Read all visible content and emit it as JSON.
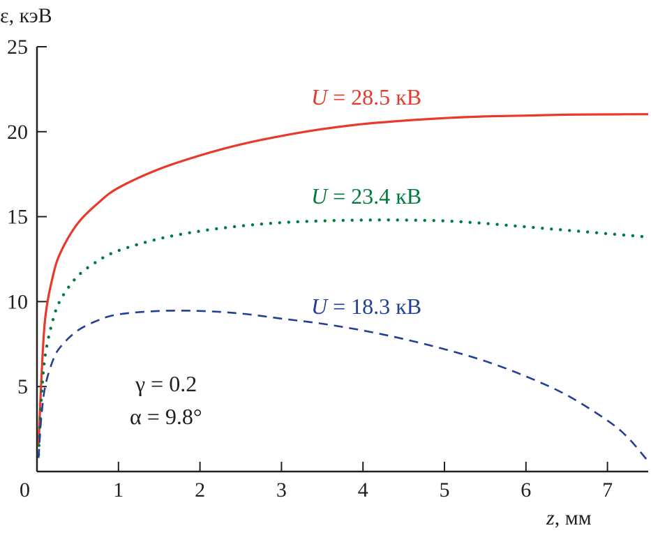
{
  "chart_data": {
    "type": "line",
    "title": "",
    "xlabel": {
      "var": "z",
      "unit": ", мм"
    },
    "ylabel": "ε, кэВ",
    "xlim": [
      0,
      7.5
    ],
    "ylim": [
      0,
      25
    ],
    "x_ticks": [
      0,
      1,
      2,
      3,
      4,
      5,
      6,
      7
    ],
    "y_ticks": [
      5,
      10,
      15,
      20,
      25
    ],
    "x_tick_labels": [
      "0",
      "1",
      "2",
      "3",
      "4",
      "5",
      "6",
      "7"
    ],
    "y_tick_labels": [
      "5",
      "10",
      "15",
      "20",
      "25"
    ],
    "grid": false,
    "annotations": [
      "γ = 0.2",
      "α = 9.8°"
    ],
    "series": [
      {
        "name": "U = 28.5 кВ",
        "label_var": "U",
        "label_rest": " = 28.5 кВ",
        "color": "#e8392a",
        "style": "solid",
        "x": [
          0.02,
          0.05,
          0.1,
          0.2,
          0.3,
          0.5,
          0.75,
          1.0,
          1.5,
          2.0,
          2.5,
          3.0,
          3.5,
          4.0,
          4.5,
          5.0,
          5.5,
          6.0,
          6.5,
          7.0,
          7.5
        ],
        "y": [
          1.5,
          5.0,
          9.0,
          11.6,
          13.0,
          14.6,
          15.8,
          16.7,
          17.8,
          18.6,
          19.25,
          19.75,
          20.15,
          20.45,
          20.65,
          20.8,
          20.9,
          20.95,
          21.0,
          21.02,
          21.03
        ]
      },
      {
        "name": "U = 23.4 кВ",
        "label_var": "U",
        "label_rest": " = 23.4 кВ",
        "color": "#007a3d",
        "style": "dotted",
        "x": [
          0.02,
          0.05,
          0.1,
          0.2,
          0.3,
          0.5,
          0.75,
          1.0,
          1.5,
          2.0,
          2.5,
          3.0,
          3.5,
          4.0,
          4.5,
          5.0,
          5.5,
          6.0,
          6.5,
          7.0,
          7.5
        ],
        "y": [
          1.0,
          4.0,
          6.8,
          9.0,
          10.2,
          11.5,
          12.4,
          13.0,
          13.7,
          14.15,
          14.45,
          14.65,
          14.75,
          14.8,
          14.8,
          14.75,
          14.6,
          14.4,
          14.2,
          14.0,
          13.8
        ]
      },
      {
        "name": "U = 18.3 кВ",
        "label_var": "U",
        "label_rest": " = 18.3 кВ",
        "color": "#233f94",
        "style": "dashed",
        "x": [
          0.02,
          0.05,
          0.1,
          0.2,
          0.3,
          0.5,
          0.75,
          1.0,
          1.5,
          2.0,
          2.5,
          3.0,
          3.5,
          4.0,
          4.5,
          5.0,
          5.5,
          6.0,
          6.5,
          7.0,
          7.25,
          7.5
        ],
        "y": [
          0.8,
          3.0,
          5.0,
          6.6,
          7.4,
          8.3,
          8.9,
          9.25,
          9.45,
          9.45,
          9.3,
          9.0,
          8.7,
          8.3,
          7.8,
          7.2,
          6.5,
          5.6,
          4.5,
          3.0,
          2.0,
          0.6
        ]
      }
    ]
  }
}
